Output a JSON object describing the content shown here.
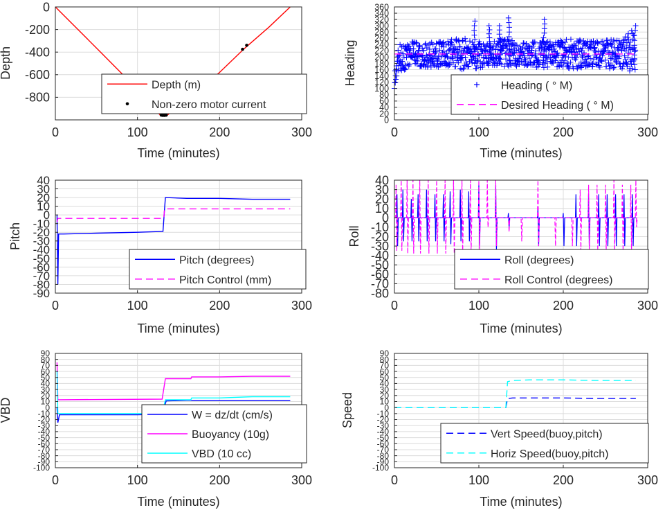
{
  "figure": {
    "background": "#ffffff",
    "grid_color": "#dcdcdc",
    "axis_color": "#262626"
  },
  "chart_data": [
    {
      "id": "depth",
      "type": "line",
      "xlabel": "Time (minutes)",
      "ylabel": "Depth",
      "xlim": [
        0,
        300
      ],
      "ylim": [
        -1000,
        0
      ],
      "xticks": [
        0,
        100,
        200,
        300
      ],
      "yticks": [
        -800,
        -600,
        -400,
        -200,
        0
      ],
      "grid": true,
      "legend": {
        "placement": "bottom-right"
      },
      "series": [
        {
          "name": "Depth (m)",
          "color": "#ff0000",
          "style": "solid",
          "points": [
            [
              0,
              0
            ],
            [
              55,
              -400
            ],
            [
              100,
              -730
            ],
            [
              128,
              -960
            ],
            [
              136,
              -960
            ],
            [
              165,
              -790
            ],
            [
              200,
              -580
            ],
            [
              230,
              -370
            ],
            [
              260,
              -180
            ],
            [
              286,
              0
            ]
          ]
        },
        {
          "name": "Non-zero motor current",
          "color": "#000000",
          "style": "dots",
          "points": [
            [
              129,
              -958
            ],
            [
              131,
              -960
            ],
            [
              133,
              -960
            ],
            [
              135,
              -958
            ],
            [
              166,
              -785
            ],
            [
              228,
              -375
            ],
            [
              233,
              -340
            ]
          ]
        }
      ]
    },
    {
      "id": "heading",
      "type": "line",
      "xlabel": "Time (minutes)",
      "ylabel": "Heading",
      "xlim": [
        0,
        300
      ],
      "ylim": [
        0,
        360
      ],
      "xticks": [
        0,
        100,
        200,
        300
      ],
      "yticks": [
        0,
        20,
        40,
        60,
        80,
        100,
        120,
        140,
        160,
        180,
        200,
        220,
        240,
        260,
        280,
        300,
        320,
        340,
        360
      ],
      "grid": true,
      "legend": {
        "placement": "bottom-right"
      },
      "series": [
        {
          "name": "Heading (  ° M)",
          "color": "#0000ff",
          "style": "markers-plus",
          "band": [
            [
              0,
              100,
              150
            ],
            [
              5,
              150,
              240
            ],
            [
              20,
              170,
              250
            ],
            [
              40,
              165,
              255
            ],
            [
              60,
              170,
              250
            ],
            [
              80,
              160,
              265
            ],
            [
              95,
              160,
              255
            ],
            [
              110,
              170,
              245
            ],
            [
              130,
              160,
              260
            ],
            [
              150,
              175,
              250
            ],
            [
              170,
              165,
              255
            ],
            [
              190,
              170,
              250
            ],
            [
              210,
              160,
              260
            ],
            [
              230,
              170,
              250
            ],
            [
              250,
              165,
              255
            ],
            [
              270,
              160,
              255
            ],
            [
              285,
              145,
              300
            ]
          ],
          "spikes": [
            [
              95,
              180,
              315
            ],
            [
              113,
              185,
              300
            ],
            [
              125,
              180,
              300
            ],
            [
              136,
              190,
              325
            ],
            [
              177,
              190,
              320
            ],
            [
              285,
              160,
              300
            ]
          ]
        },
        {
          "name": "Desired Heading (     ° M)",
          "color": "#ff00ff",
          "style": "dashed",
          "points": [
            [
              0,
              210
            ],
            [
              286,
              210
            ]
          ]
        }
      ]
    },
    {
      "id": "pitch",
      "type": "line",
      "xlabel": "Time (minutes)",
      "ylabel": "Pitch",
      "xlim": [
        0,
        300
      ],
      "ylim": [
        -90,
        40
      ],
      "xticks": [
        0,
        100,
        200,
        300
      ],
      "yticks": [
        -90,
        -80,
        -70,
        -60,
        -50,
        -40,
        -30,
        -20,
        -10,
        0,
        10,
        20,
        30,
        40
      ],
      "grid": true,
      "legend": {
        "placement": "bottom-right"
      },
      "series": [
        {
          "name": "Pitch (degrees)",
          "color": "#0000ff",
          "style": "solid",
          "points": [
            [
              2,
              0
            ],
            [
              3,
              -80
            ],
            [
              4,
              -22
            ],
            [
              10,
              -22
            ],
            [
              50,
              -21
            ],
            [
              100,
              -20
            ],
            [
              131,
              -19
            ],
            [
              134,
              20
            ],
            [
              160,
              19
            ],
            [
              200,
              19
            ],
            [
              240,
              18
            ],
            [
              286,
              18
            ]
          ]
        },
        {
          "name": "Pitch Control (mm)",
          "color": "#ff00ff",
          "style": "dashed",
          "points": [
            [
              2,
              -8
            ],
            [
              3,
              -4
            ],
            [
              132,
              -4
            ],
            [
              133,
              7
            ],
            [
              286,
              7
            ]
          ]
        }
      ]
    },
    {
      "id": "roll",
      "type": "line",
      "xlabel": "Time (minutes)",
      "ylabel": "Roll",
      "xlim": [
        0,
        300
      ],
      "ylim": [
        -80,
        40
      ],
      "xticks": [
        0,
        100,
        200,
        300
      ],
      "yticks": [
        -80,
        -70,
        -60,
        -50,
        -40,
        -30,
        -20,
        -10,
        0,
        10,
        20,
        30,
        40
      ],
      "grid": true,
      "legend": {
        "placement": "bottom-right"
      },
      "series": [
        {
          "name": "Roll (degrees)",
          "color": "#0000ff",
          "style": "solid",
          "baseline": 0,
          "spikes": [
            [
              3,
              25,
              -30
            ],
            [
              10,
              30,
              -25
            ],
            [
              20,
              20,
              -25
            ],
            [
              28,
              25,
              -25
            ],
            [
              38,
              30,
              -25
            ],
            [
              48,
              25,
              -25
            ],
            [
              58,
              25,
              -25
            ],
            [
              66,
              28,
              -28
            ],
            [
              78,
              30,
              -25
            ],
            [
              88,
              28,
              -25
            ],
            [
              100,
              35,
              -30
            ],
            [
              120,
              35,
              -35
            ],
            [
              135,
              5,
              -10
            ],
            [
              170,
              10,
              -30
            ],
            [
              200,
              5,
              -30
            ],
            [
              215,
              25,
              -30
            ],
            [
              230,
              25,
              -30
            ],
            [
              242,
              25,
              -30
            ],
            [
              252,
              25,
              -30
            ],
            [
              262,
              25,
              -30
            ],
            [
              272,
              25,
              -30
            ],
            [
              282,
              25,
              -30
            ]
          ]
        },
        {
          "name": "Roll Control (degrees)",
          "color": "#ff00ff",
          "style": "dashed",
          "baseline": 0,
          "spikes": [
            [
              2,
              35,
              -35
            ],
            [
              8,
              40,
              -35
            ],
            [
              15,
              40,
              -38
            ],
            [
              22,
              40,
              -38
            ],
            [
              30,
              40,
              -38
            ],
            [
              40,
              40,
              -38
            ],
            [
              50,
              40,
              -38
            ],
            [
              60,
              40,
              -38
            ],
            [
              70,
              40,
              -38
            ],
            [
              80,
              40,
              -38
            ],
            [
              90,
              40,
              -38
            ],
            [
              100,
              40,
              -38
            ],
            [
              110,
              40,
              -10
            ],
            [
              120,
              40,
              -30
            ],
            [
              135,
              0,
              -15
            ],
            [
              150,
              0,
              -25
            ],
            [
              170,
              40,
              -30
            ],
            [
              190,
              0,
              -30
            ],
            [
              210,
              0,
              -30
            ],
            [
              220,
              30,
              -35
            ],
            [
              230,
              35,
              -35
            ],
            [
              240,
              35,
              -35
            ],
            [
              250,
              35,
              -35
            ],
            [
              260,
              40,
              -35
            ],
            [
              270,
              35,
              -35
            ],
            [
              280,
              35,
              -35
            ],
            [
              286,
              40,
              -10
            ]
          ]
        }
      ]
    },
    {
      "id": "vbd",
      "type": "line",
      "xlabel": "Time (minutes)",
      "ylabel": "VBD",
      "xlim": [
        0,
        300
      ],
      "ylim": [
        -100,
        90
      ],
      "xticks": [
        0,
        100,
        200,
        300
      ],
      "yticks": [
        -100,
        -90,
        -80,
        -70,
        -60,
        -50,
        -40,
        -30,
        -20,
        -10,
        0,
        10,
        20,
        30,
        40,
        50,
        60,
        70,
        80,
        90
      ],
      "grid": true,
      "legend": {
        "placement": "bottom-right"
      },
      "series": [
        {
          "name": "W = dz/dt (cm/s)",
          "color": "#0000ff",
          "style": "solid",
          "points": [
            [
              2,
              0
            ],
            [
              3,
              -25
            ],
            [
              5,
              -12
            ],
            [
              20,
              -12
            ],
            [
              60,
              -12
            ],
            [
              100,
              -12
            ],
            [
              130,
              -11
            ],
            [
              135,
              11
            ],
            [
              160,
              12
            ],
            [
              200,
              12
            ],
            [
              240,
              12
            ],
            [
              286,
              12
            ]
          ]
        },
        {
          "name": "Buoyancy (10g)",
          "color": "#ff00ff",
          "style": "solid",
          "points": [
            [
              2,
              75
            ],
            [
              3,
              13
            ],
            [
              130,
              14
            ],
            [
              134,
              48
            ],
            [
              165,
              48
            ],
            [
              166,
              51
            ],
            [
              200,
              51
            ],
            [
              240,
              52
            ],
            [
              286,
              52
            ]
          ]
        },
        {
          "name": "VBD (10 cc)",
          "color": "#00ffff",
          "style": "solid",
          "points": [
            [
              2,
              60
            ],
            [
              3,
              -10
            ],
            [
              130,
              -10
            ],
            [
              134,
              13
            ],
            [
              165,
              13
            ],
            [
              166,
              16
            ],
            [
              200,
              16
            ],
            [
              240,
              18
            ],
            [
              286,
              18
            ]
          ]
        }
      ]
    },
    {
      "id": "speed",
      "type": "line",
      "xlabel": "Time (minutes)",
      "ylabel": "Speed",
      "xlim": [
        0,
        300
      ],
      "ylim": [
        -100,
        90
      ],
      "xticks": [
        0,
        100,
        200,
        300
      ],
      "yticks": [
        -100,
        -90,
        -80,
        -70,
        -60,
        -50,
        -40,
        -30,
        -20,
        -10,
        0,
        10,
        20,
        30,
        40,
        50,
        60,
        70,
        80,
        90
      ],
      "grid": true,
      "legend": {
        "placement": "bottom-right"
      },
      "series": [
        {
          "name": "Vert Speed(buoy,pitch)",
          "color": "#0000ff",
          "style": "dashed",
          "points": [
            [
              0,
              0
            ],
            [
              132,
              0
            ],
            [
              134,
              15
            ],
            [
              140,
              16
            ],
            [
              160,
              16
            ],
            [
              200,
              16
            ],
            [
              240,
              15
            ],
            [
              286,
              15
            ]
          ]
        },
        {
          "name": "Horiz Speed(buoy,pitch)",
          "color": "#00ffff",
          "style": "dashed",
          "points": [
            [
              0,
              0
            ],
            [
              132,
              0
            ],
            [
              134,
              43
            ],
            [
              140,
              45
            ],
            [
              160,
              46
            ],
            [
              200,
              46
            ],
            [
              240,
              45
            ],
            [
              286,
              45
            ]
          ]
        }
      ]
    }
  ]
}
